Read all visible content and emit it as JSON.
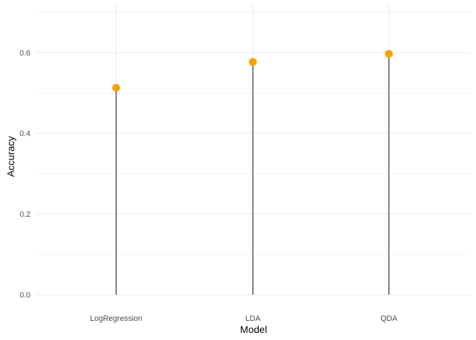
{
  "chart_data": {
    "type": "scatter",
    "subtype": "lollipop",
    "title": "",
    "xlabel": "Model",
    "ylabel": "Accuracy",
    "categories": [
      "LogRegression",
      "LDA",
      "QDA"
    ],
    "values": [
      0.513,
      0.577,
      0.597
    ],
    "ylim": [
      0,
      0.72
    ],
    "yticks": [
      0.0,
      0.2,
      0.4,
      0.6
    ],
    "ytick_labels": [
      "0.0",
      "0.2",
      "0.4",
      "0.6"
    ],
    "grid": true,
    "legend": "none",
    "colors": {
      "point": "#F5A300",
      "stem": "#000000",
      "grid": "#ebebeb"
    }
  }
}
